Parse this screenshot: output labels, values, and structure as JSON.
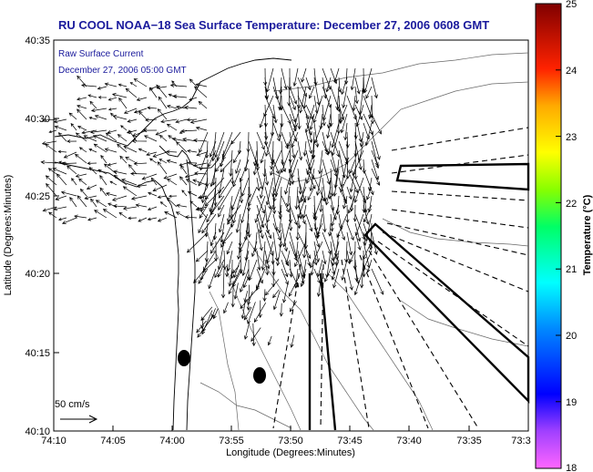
{
  "title": "RU COOL  NOAA−18  Sea Surface Temperature:  December 27, 2006 0608 GMT",
  "legend": {
    "line1": "Raw Surface Current",
    "line2": "December 27, 2006 05:00 GMT"
  },
  "scale_label": "50 cm/s",
  "x_axis": {
    "label": "Longitude (Degrees:Minutes)",
    "ticks": [
      "74:10",
      "74:05",
      "74:00",
      "73:55",
      "73:50",
      "73:45",
      "73:40",
      "73:35",
      "73:3"
    ]
  },
  "y_axis": {
    "label": "Latitude (Degrees:Minutes)",
    "ticks": [
      "40:35",
      "40:30",
      "40:25",
      "40:20",
      "40:15",
      "40:10"
    ]
  },
  "colorbar": {
    "label": "Temperature (°C)",
    "ticks": [
      "25",
      "24",
      "23",
      "22",
      "21",
      "20",
      "19",
      "18"
    ],
    "range": [
      18,
      25
    ],
    "colors": [
      "#ff66ff",
      "#0000ff",
      "#00ffff",
      "#00ff00",
      "#ffff00",
      "#ff9900",
      "#ff0000",
      "#800000"
    ]
  }
}
